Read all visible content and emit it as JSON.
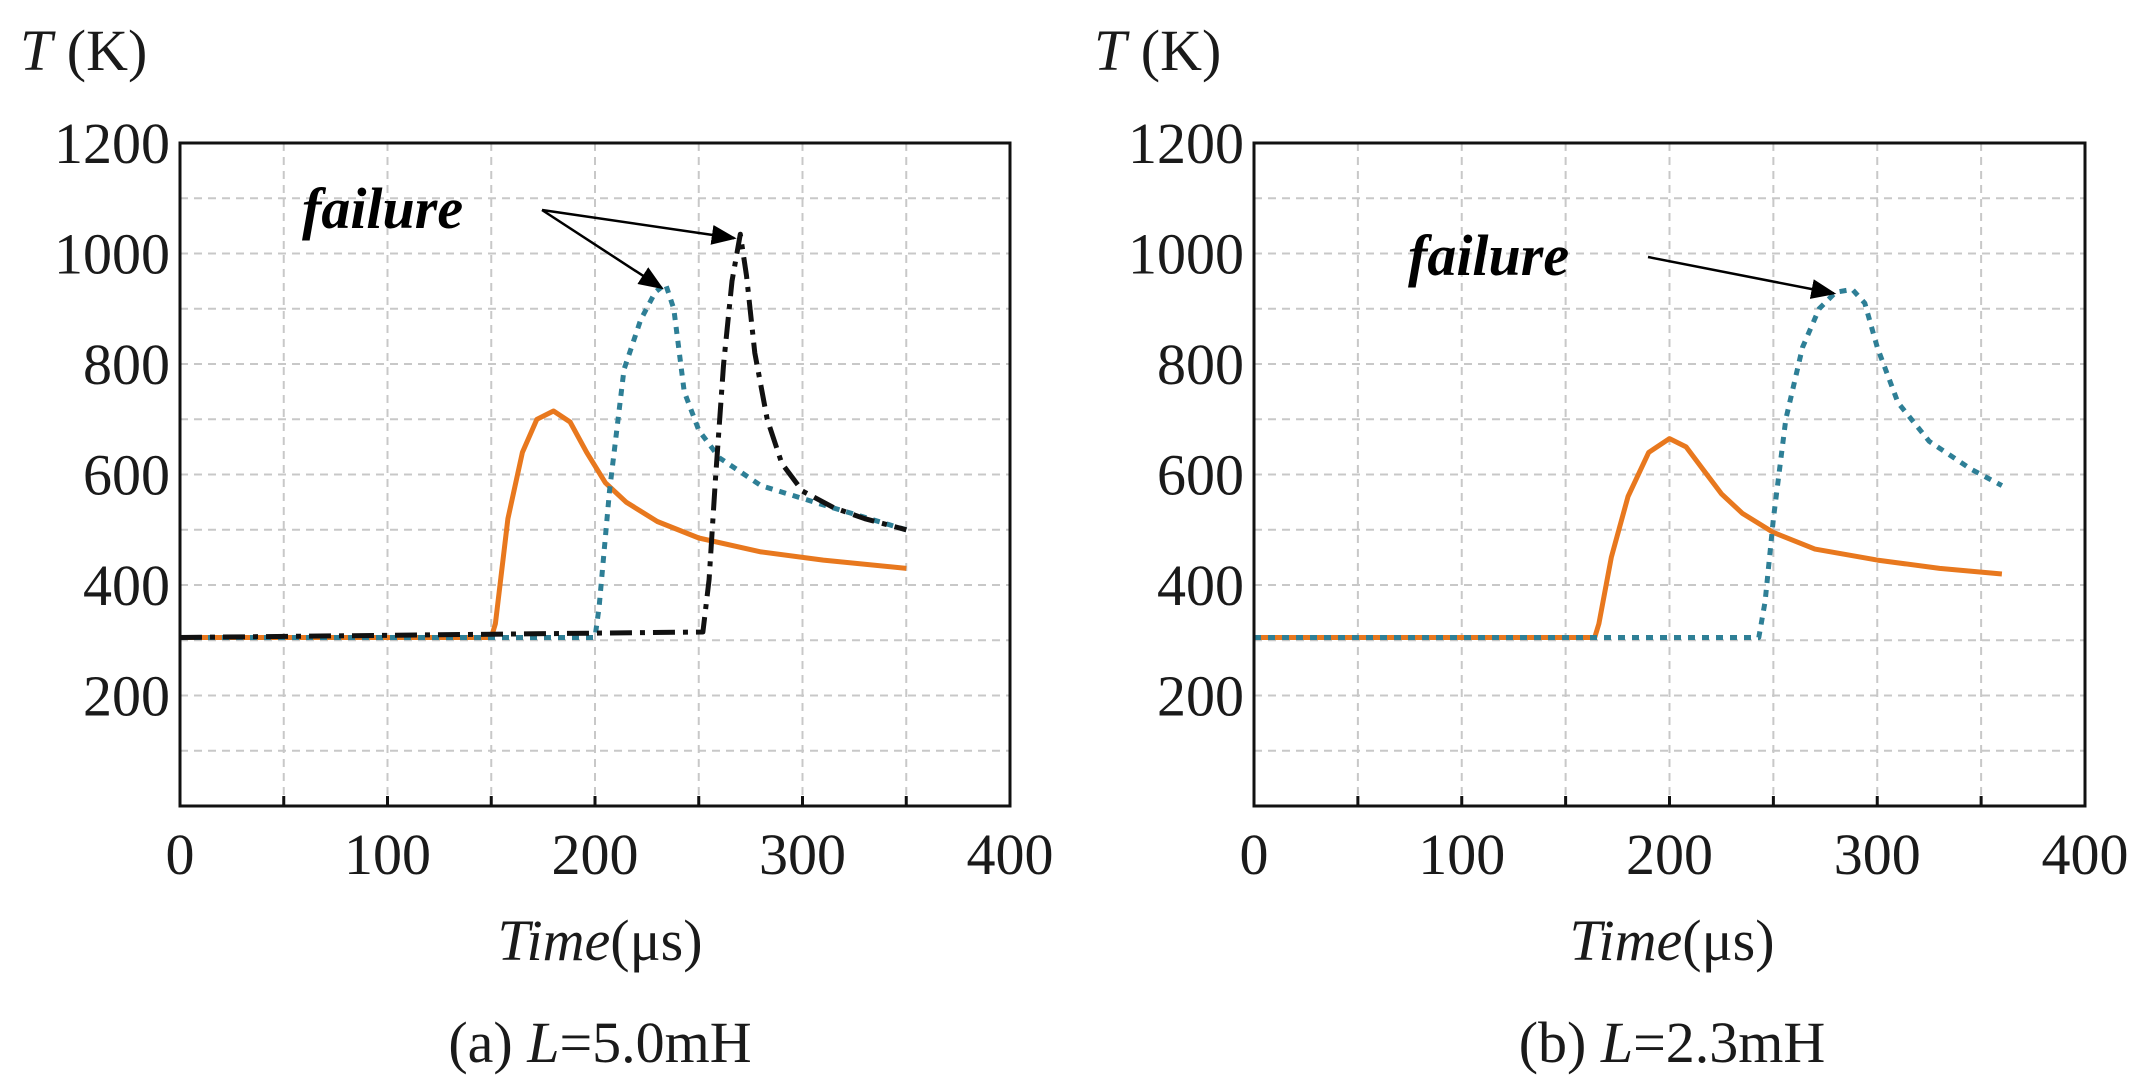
{
  "chart_data": [
    {
      "type": "line",
      "caption_prefix": "(a) ",
      "caption_var": "L",
      "caption_suffix": "=5.0mH",
      "ylabel_var": "T",
      "ylabel_unit": " (K)",
      "xlabel_var": "Time",
      "xlabel_unit": "(μs)",
      "xlim": [
        0,
        400
      ],
      "ylim": [
        0,
        1200
      ],
      "xticks": [
        "0",
        "100",
        "200",
        "300",
        "400"
      ],
      "yticks": [
        "200",
        "400",
        "600",
        "800",
        "1000",
        "1200"
      ],
      "grid": true,
      "annotation": {
        "text": "failure",
        "targets": [
          [
            235,
            945
          ],
          [
            270,
            1035
          ]
        ]
      },
      "series": [
        {
          "name": "solid",
          "color": "#e8781e",
          "dash": "",
          "x": [
            0,
            150,
            152,
            158,
            165,
            172,
            180,
            188,
            196,
            205,
            215,
            230,
            250,
            280,
            310,
            350
          ],
          "y": [
            305,
            305,
            330,
            520,
            640,
            700,
            715,
            695,
            640,
            585,
            550,
            515,
            485,
            460,
            445,
            430
          ]
        },
        {
          "name": "dotted",
          "color": "#2e7f96",
          "dash": "7 7",
          "x": [
            0,
            200,
            202,
            207,
            214,
            222,
            229,
            234,
            238,
            243,
            250,
            260,
            280,
            310,
            350
          ],
          "y": [
            305,
            305,
            360,
            570,
            790,
            880,
            930,
            945,
            900,
            750,
            680,
            630,
            580,
            545,
            500
          ]
        },
        {
          "name": "dash-dot",
          "color": "#111111",
          "dash": "22 8 5 8",
          "x": [
            0,
            252,
            255,
            258,
            262,
            266,
            270,
            273,
            277,
            283,
            290,
            300,
            315,
            330,
            350
          ],
          "y": [
            305,
            315,
            410,
            590,
            800,
            950,
            1035,
            960,
            820,
            700,
            620,
            570,
            540,
            520,
            500
          ]
        }
      ]
    },
    {
      "type": "line",
      "caption_prefix": "(b) ",
      "caption_var": "L",
      "caption_suffix": "=2.3mH",
      "ylabel_var": "T",
      "ylabel_unit": " (K)",
      "xlabel_var": "Time",
      "xlabel_unit": "(μs)",
      "xlim": [
        0,
        400
      ],
      "ylim": [
        0,
        1200
      ],
      "xticks": [
        "0",
        "100",
        "200",
        "300",
        "400"
      ],
      "yticks": [
        "200",
        "400",
        "600",
        "800",
        "1000",
        "1200"
      ],
      "grid": true,
      "annotation": {
        "text": "failure",
        "targets": [
          [
            282,
            935
          ]
        ]
      },
      "series": [
        {
          "name": "solid",
          "color": "#e8781e",
          "dash": "",
          "x": [
            0,
            164,
            166,
            172,
            180,
            190,
            200,
            208,
            216,
            225,
            235,
            250,
            270,
            300,
            330,
            360
          ],
          "y": [
            305,
            305,
            330,
            450,
            560,
            640,
            665,
            650,
            610,
            565,
            530,
            495,
            465,
            445,
            430,
            420
          ]
        },
        {
          "name": "dotted",
          "color": "#2e7f96",
          "dash": "7 7",
          "x": [
            0,
            243,
            246,
            250,
            256,
            264,
            272,
            280,
            288,
            294,
            300,
            310,
            325,
            345,
            360
          ],
          "y": [
            305,
            305,
            370,
            520,
            700,
            830,
            900,
            930,
            935,
            910,
            830,
            730,
            660,
            610,
            580
          ]
        }
      ]
    }
  ]
}
